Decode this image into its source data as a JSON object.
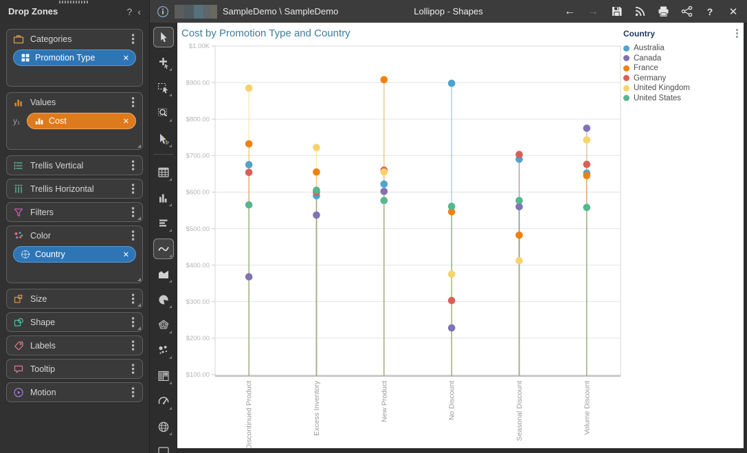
{
  "window": {
    "titlebar": {
      "breadcrumb": "SampleDemo \\ SampleDemo",
      "title": "Lollipop - Shapes",
      "actions": [
        {
          "name": "back-button",
          "icon": "back-arrow-icon",
          "enabled": true
        },
        {
          "name": "forward-button",
          "icon": "forward-arrow-icon",
          "enabled": false
        },
        {
          "name": "save-button",
          "icon": "save-icon",
          "enabled": true
        },
        {
          "name": "publish-button",
          "icon": "rss-icon",
          "enabled": true
        },
        {
          "name": "print-button",
          "icon": "printer-icon",
          "enabled": true
        },
        {
          "name": "share-button",
          "icon": "share-icon",
          "enabled": true
        },
        {
          "name": "help-button",
          "icon": "help-icon",
          "enabled": true
        },
        {
          "name": "close-button",
          "icon": "close-icon",
          "enabled": true
        }
      ]
    }
  },
  "drop_zones": {
    "title": "Drop Zones",
    "help_label": "?",
    "collapse_label": "‹",
    "sections": [
      {
        "label": "Categories",
        "icon": "briefcase-icon",
        "tall": true,
        "pills": [
          {
            "label": "Promotion Type",
            "icon": "grid-icon",
            "color": "#2E75B6",
            "border": "#5B9BD5"
          }
        ]
      },
      {
        "label": "Values",
        "icon": "values-bars-icon",
        "tall": true,
        "corner": true,
        "prefix": "y₁",
        "pills": [
          {
            "label": "Cost",
            "icon": "mini-bars-icon",
            "color": "#DE7A1E",
            "border": "#F2A85C"
          }
        ]
      },
      {
        "label": "Trellis Vertical",
        "icon": "trellis-vertical-icon"
      },
      {
        "label": "Trellis Horizontal",
        "icon": "trellis-horizontal-icon"
      },
      {
        "label": "Filters",
        "icon": "funnel-icon",
        "corner": true
      },
      {
        "label": "Color",
        "icon": "color-dots-icon",
        "tall": true,
        "corner": true,
        "pills": [
          {
            "label": "Country",
            "icon": "globe-grid-icon",
            "color": "#2E75B6",
            "border": "#5B9BD5"
          }
        ]
      },
      {
        "label": "Size",
        "icon": "size-icon",
        "corner": true
      },
      {
        "label": "Shape",
        "icon": "shape-icon",
        "corner": true
      },
      {
        "label": "Labels",
        "icon": "tag-icon"
      },
      {
        "label": "Tooltip",
        "icon": "tooltip-bubble-icon"
      },
      {
        "label": "Motion",
        "icon": "motion-icon"
      }
    ],
    "pill_close_glyph": "✕"
  },
  "toolbar": {
    "items": [
      {
        "name": "pointer-tool",
        "icon": "pointer-icon",
        "selected": true,
        "flyout": false
      },
      {
        "name": "add-pointer-tool",
        "icon": "add-pointer-icon",
        "flyout": true
      },
      {
        "name": "marquee-select-tool",
        "icon": "marquee-icon",
        "flyout": true
      },
      {
        "name": "zoom-area-tool",
        "icon": "zoom-area-icon",
        "flyout": true
      },
      {
        "name": "highlight-tool",
        "icon": "highlight-pointer-icon",
        "flyout": true
      },
      {
        "divider": true
      },
      {
        "name": "grid-visualization",
        "icon": "table-icon",
        "flyout": true
      },
      {
        "name": "column-chart-visualization",
        "icon": "column-chart-icon",
        "flyout": true
      },
      {
        "name": "bar-chart-visualization",
        "icon": "rows-icon",
        "flyout": true
      },
      {
        "name": "line-chart-visualization",
        "icon": "line-chart-icon",
        "selected": true,
        "flyout": true
      },
      {
        "name": "area-chart-visualization",
        "icon": "area-chart-icon",
        "flyout": true
      },
      {
        "name": "pie-chart-visualization",
        "icon": "pie-chart-icon",
        "flyout": true
      },
      {
        "name": "radar-chart-visualization",
        "icon": "radar-chart-icon",
        "flyout": true
      },
      {
        "name": "scatter-chart-visualization",
        "icon": "scatter-chart-icon",
        "flyout": true
      },
      {
        "name": "treemap-visualization",
        "icon": "treemap-icon",
        "flyout": true
      },
      {
        "name": "gauge-visualization",
        "icon": "gauge-icon",
        "flyout": true
      },
      {
        "name": "map-visualization",
        "icon": "globe-icon",
        "flyout": true
      },
      {
        "name": "more-visualization",
        "icon": "clipped-rect-icon",
        "flyout": true
      }
    ]
  },
  "chart_data": {
    "type": "scatter",
    "subtype": "lollipop",
    "title": "Cost by Promotion Type and Country",
    "legend_title": "Country",
    "legend_position": "top-right",
    "grid": true,
    "ylim": [
      100,
      1000
    ],
    "yticks": [
      {
        "label": "$1.00K",
        "value": 1000
      },
      {
        "label": "$900.00",
        "value": 900
      },
      {
        "label": "$800.00",
        "value": 800
      },
      {
        "label": "$700.00",
        "value": 700
      },
      {
        "label": "$600.00",
        "value": 600
      },
      {
        "label": "$500.00",
        "value": 500
      },
      {
        "label": "$400.00",
        "value": 400
      },
      {
        "label": "$300.00",
        "value": 300
      },
      {
        "label": "$200.00",
        "value": 200
      },
      {
        "label": "$100.00",
        "value": 100
      }
    ],
    "categories": [
      "Discontinued Product",
      "Excess Inventory",
      "New Product",
      "No Discount",
      "Seasonal Discount",
      "Volume Discount"
    ],
    "series": [
      {
        "name": "Australia",
        "color": "#4EA3CF",
        "values": [
          675,
          590,
          622,
          898,
          690,
          652
        ]
      },
      {
        "name": "Canada",
        "color": "#8172B4",
        "values": [
          368,
          537,
          602,
          228,
          560,
          775
        ]
      },
      {
        "name": "France",
        "color": "#EE8210",
        "values": [
          732,
          655,
          908,
          546,
          482,
          645
        ]
      },
      {
        "name": "Germany",
        "color": "#DA5F58",
        "values": [
          654,
          600,
          660,
          303,
          703,
          676
        ]
      },
      {
        "name": "United Kingdom",
        "color": "#F6D36B",
        "values": [
          885,
          722,
          655,
          375,
          412,
          743
        ]
      },
      {
        "name": "United States",
        "color": "#56B690",
        "values": [
          565,
          605,
          577,
          561,
          577,
          558
        ]
      }
    ]
  }
}
